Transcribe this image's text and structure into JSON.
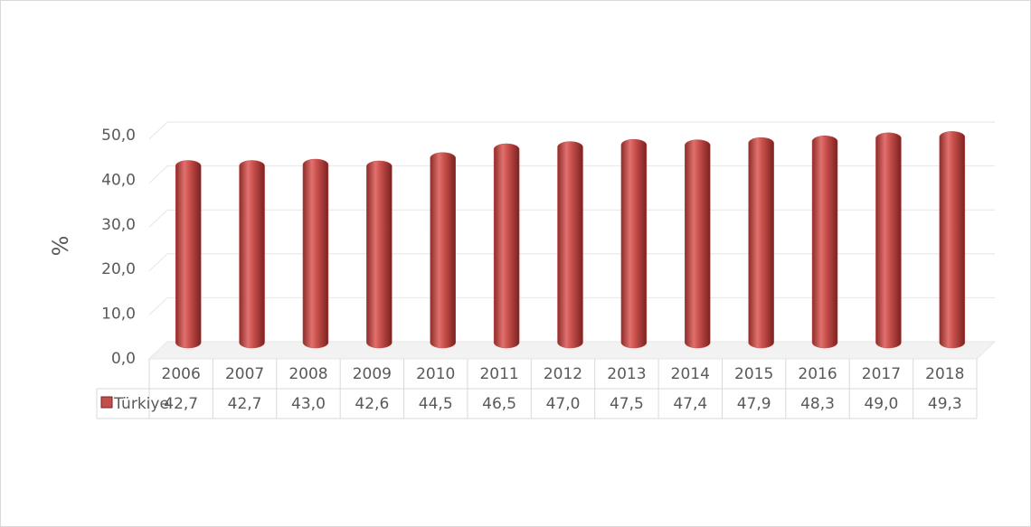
{
  "chart_data": {
    "type": "bar",
    "y_label": "%",
    "categories": [
      "2006",
      "2007",
      "2008",
      "2009",
      "2010",
      "2011",
      "2012",
      "2013",
      "2014",
      "2015",
      "2016",
      "2017",
      "2018"
    ],
    "series": [
      {
        "name": "Türkiye",
        "color": "#c0504d",
        "values": [
          42.7,
          42.7,
          43.0,
          42.6,
          44.5,
          46.5,
          47.0,
          47.5,
          47.4,
          47.9,
          48.3,
          49.0,
          49.3
        ],
        "value_labels": [
          "42,7",
          "42,7",
          "43,0",
          "42,6",
          "44,5",
          "46,5",
          "47,0",
          "47,5",
          "47,4",
          "47,9",
          "48,3",
          "49,0",
          "49,3"
        ]
      }
    ],
    "ylim": [
      0,
      50
    ],
    "yticks": [
      {
        "value": 0,
        "label": "0,0"
      },
      {
        "value": 10,
        "label": "10,0"
      },
      {
        "value": 20,
        "label": "20,0"
      },
      {
        "value": 30,
        "label": "30,0"
      },
      {
        "value": 40,
        "label": "40,0"
      },
      {
        "value": 50,
        "label": "50,0"
      }
    ],
    "grid": true
  }
}
